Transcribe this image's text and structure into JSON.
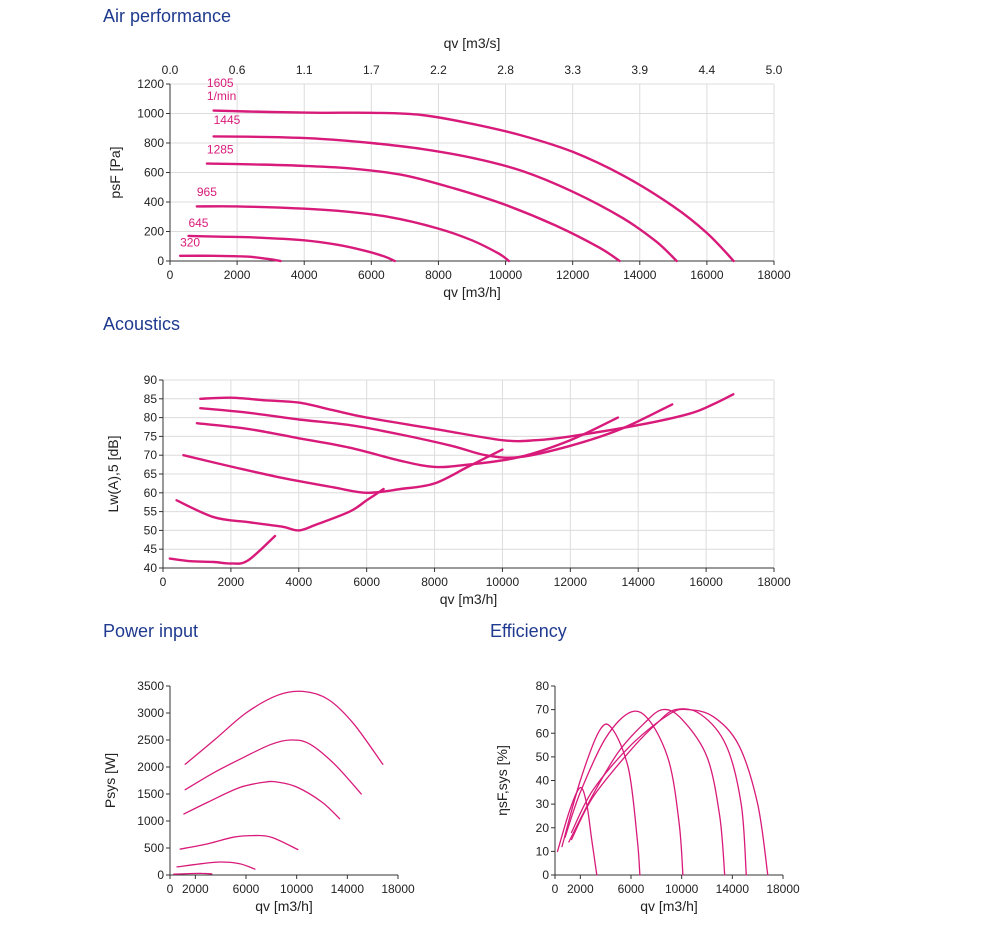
{
  "sections": {
    "air": "Air performance",
    "acoustics": "Acoustics",
    "power": "Power input",
    "efficiency": "Efficiency"
  },
  "colors": {
    "curve": "#d81b7a",
    "title": "#1f3a8f"
  },
  "chart_data": [
    {
      "id": "air",
      "type": "line",
      "title": "Air performance",
      "xlabel": "qv [m3/h]",
      "ylabel": "psF [Pa]",
      "x2label": "qv [m3/s]",
      "xlim": [
        0,
        18000
      ],
      "ylim": [
        0,
        1200
      ],
      "xticks": [
        0,
        2000,
        4000,
        6000,
        8000,
        10000,
        12000,
        14000,
        16000,
        18000
      ],
      "yticks": [
        0,
        200,
        400,
        600,
        800,
        1000,
        1200
      ],
      "x2ticks": [
        "0.0",
        "0.6",
        "1.1",
        "1.7",
        "2.2",
        "2.8",
        "3.3",
        "3.9",
        "4.4",
        "5.0"
      ],
      "curve_labels": [
        {
          "text": "1605",
          "x": 1100,
          "y": 1180
        },
        {
          "text": "1/min",
          "x": 1100,
          "y": 1090
        },
        {
          "text": "1445",
          "x": 1300,
          "y": 930
        },
        {
          "text": "1285",
          "x": 1100,
          "y": 730
        },
        {
          "text": "965",
          "x": 800,
          "y": 440
        },
        {
          "text": "645",
          "x": 550,
          "y": 230
        },
        {
          "text": "320",
          "x": 300,
          "y": 100
        }
      ],
      "series": [
        {
          "x": [
            1300,
            3000,
            4500,
            6000,
            7500,
            9000,
            10500,
            12000,
            13500,
            15000,
            16000,
            16800
          ],
          "y": [
            1020,
            1010,
            1005,
            1005,
            990,
            930,
            850,
            740,
            580,
            370,
            190,
            0
          ]
        },
        {
          "x": [
            1300,
            3000,
            4500,
            6000,
            7500,
            9000,
            10500,
            12000,
            13500,
            14500,
            15100
          ],
          "y": [
            845,
            840,
            828,
            800,
            760,
            700,
            610,
            470,
            290,
            130,
            0
          ]
        },
        {
          "x": [
            1100,
            2500,
            4000,
            5500,
            7000,
            8500,
            10000,
            11500,
            12800,
            13400
          ],
          "y": [
            660,
            655,
            645,
            625,
            580,
            490,
            380,
            240,
            90,
            0
          ]
        },
        {
          "x": [
            800,
            2000,
            3500,
            5000,
            6500,
            8000,
            9000,
            9800,
            10100
          ],
          "y": [
            370,
            370,
            360,
            340,
            300,
            220,
            140,
            50,
            0
          ]
        },
        {
          "x": [
            550,
            1500,
            2500,
            4000,
            5000,
            5800,
            6400,
            6700
          ],
          "y": [
            170,
            165,
            160,
            140,
            110,
            70,
            30,
            0
          ]
        },
        {
          "x": [
            300,
            1300,
            2300,
            2900,
            3300
          ],
          "y": [
            35,
            35,
            30,
            15,
            0
          ]
        }
      ]
    },
    {
      "id": "acoustics",
      "type": "line",
      "title": "Acoustics",
      "xlabel": "qv [m3/h]",
      "ylabel": "Lw(A),5 [dB]",
      "xlim": [
        0,
        18000
      ],
      "ylim": [
        40,
        90
      ],
      "xticks": [
        0,
        2000,
        4000,
        6000,
        8000,
        10000,
        12000,
        14000,
        16000,
        18000
      ],
      "yticks": [
        40,
        45,
        50,
        55,
        60,
        65,
        70,
        75,
        80,
        85,
        90
      ],
      "series": [
        {
          "x": [
            1100,
            2000,
            3000,
            4000,
            5000,
            6000,
            8000,
            10000,
            11000,
            12000,
            14000,
            15500,
            16200,
            16800
          ],
          "y": [
            85,
            85.3,
            84.6,
            84,
            82,
            80,
            77,
            74,
            74,
            75,
            78,
            81,
            83.5,
            86.2
          ]
        },
        {
          "x": [
            1100,
            2500,
            4000,
            5500,
            7000,
            8500,
            9500,
            10500,
            12000,
            13500,
            15000
          ],
          "y": [
            82.5,
            81.3,
            79.5,
            78,
            75.5,
            72.5,
            70,
            69.5,
            72.5,
            77,
            83.5
          ]
        },
        {
          "x": [
            1000,
            2500,
            4000,
            5500,
            7000,
            8000,
            9000,
            10500,
            12000,
            13400
          ],
          "y": [
            78.5,
            77,
            74.5,
            72,
            68.5,
            66.9,
            67.5,
            69.5,
            74,
            80
          ]
        },
        {
          "x": [
            600,
            2000,
            3500,
            5000,
            6000,
            7000,
            8000,
            9000,
            10000
          ],
          "y": [
            70,
            67,
            64,
            61.5,
            60,
            61,
            62.5,
            67,
            71.5
          ]
        },
        {
          "x": [
            400,
            1500,
            2500,
            3500,
            4000,
            4500,
            5500,
            6000,
            6500
          ],
          "y": [
            58,
            53.5,
            52.2,
            51,
            50,
            51.5,
            55,
            58,
            61
          ]
        },
        {
          "x": [
            200,
            800,
            1500,
            2000,
            2500,
            3300
          ],
          "y": [
            42.5,
            41.8,
            41.6,
            41.2,
            42,
            48.5
          ]
        }
      ]
    },
    {
      "id": "power",
      "type": "line",
      "title": "Power input",
      "xlabel": "qv [m3/h]",
      "ylabel": "Psys [W]",
      "xlim": [
        0,
        18000
      ],
      "ylim": [
        0,
        3500
      ],
      "xticks": [
        0,
        2000,
        6000,
        10000,
        14000,
        18000
      ],
      "yticks": [
        0,
        500,
        1000,
        1500,
        2000,
        2500,
        3000,
        3500
      ],
      "series": [
        {
          "x": [
            1200,
            3500,
            6000,
            8500,
            10500,
            12500,
            14500,
            16800
          ],
          "y": [
            2050,
            2500,
            3000,
            3330,
            3400,
            3250,
            2800,
            2050
          ]
        },
        {
          "x": [
            1200,
            3500,
            6000,
            8000,
            9500,
            11000,
            13000,
            15100
          ],
          "y": [
            1580,
            1900,
            2200,
            2420,
            2500,
            2430,
            2050,
            1500
          ]
        },
        {
          "x": [
            1100,
            3000,
            5500,
            7500,
            8500,
            10000,
            12000,
            13400
          ],
          "y": [
            1130,
            1350,
            1620,
            1720,
            1720,
            1630,
            1350,
            1040
          ]
        },
        {
          "x": [
            800,
            3000,
            5000,
            6500,
            8000,
            10100
          ],
          "y": [
            480,
            580,
            700,
            730,
            700,
            470
          ]
        },
        {
          "x": [
            550,
            2500,
            4000,
            5500,
            6700
          ],
          "y": [
            150,
            210,
            240,
            210,
            110
          ]
        },
        {
          "x": [
            300,
            1500,
            2500,
            3300
          ],
          "y": [
            15,
            25,
            30,
            20
          ]
        }
      ]
    },
    {
      "id": "efficiency",
      "type": "line",
      "title": "Efficiency",
      "xlabel": "qv [m3/h]",
      "ylabel": "ηsF,sys [%]",
      "xlim": [
        0,
        18000
      ],
      "ylim": [
        0,
        80
      ],
      "xticks": [
        0,
        2000,
        6000,
        10000,
        14000,
        18000
      ],
      "yticks": [
        0,
        10,
        20,
        30,
        40,
        50,
        60,
        70,
        80
      ],
      "series": [
        {
          "x": [
            1300,
            3000,
            6000,
            9000,
            10500,
            12500,
            14500,
            16000,
            16800
          ],
          "y": [
            18,
            36,
            55,
            68,
            70,
            67,
            55,
            30,
            0
          ]
        },
        {
          "x": [
            1300,
            3000,
            6000,
            8000,
            9500,
            11500,
            13500,
            14700,
            15100
          ],
          "y": [
            15,
            33,
            53,
            64,
            70,
            68,
            55,
            30,
            0
          ]
        },
        {
          "x": [
            1100,
            3000,
            5000,
            7000,
            8500,
            10000,
            12000,
            13000,
            13400
          ],
          "y": [
            14,
            34,
            52,
            64,
            70,
            66,
            50,
            25,
            0
          ]
        },
        {
          "x": [
            800,
            2000,
            4000,
            6000,
            7500,
            9000,
            9800,
            10100
          ],
          "y": [
            16,
            35,
            58,
            69,
            65,
            48,
            22,
            0
          ]
        },
        {
          "x": [
            550,
            2000,
            3500,
            4500,
            5800,
            6500,
            6700
          ],
          "y": [
            12,
            40,
            61,
            62,
            45,
            15,
            0
          ]
        },
        {
          "x": [
            200,
            1200,
            2000,
            2500,
            2900,
            3300
          ],
          "y": [
            10,
            28,
            37,
            30,
            15,
            0
          ]
        }
      ]
    }
  ]
}
